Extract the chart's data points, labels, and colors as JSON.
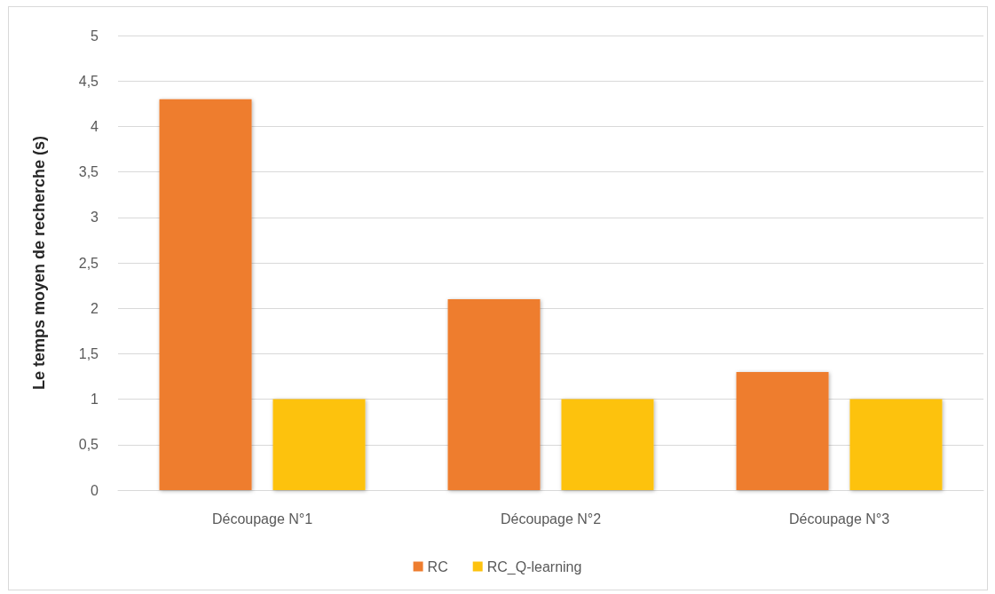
{
  "chart_data": {
    "type": "bar",
    "ylabel": "Le temps moyen de recherche (s)",
    "categories": [
      "Découpage N°1",
      "Découpage N°2",
      "Découpage N°3"
    ],
    "series": [
      {
        "name": "RC",
        "color": "#ee7d2f",
        "values": [
          4.3,
          2.1,
          1.3
        ]
      },
      {
        "name": "RC_Q-learning",
        "color": "#fdc20e",
        "values": [
          1,
          1,
          1
        ]
      }
    ],
    "ylim": [
      0,
      5
    ],
    "yticks": [
      0,
      {
        "value": 0.5,
        "label": "0,5"
      },
      1,
      {
        "value": 1.5,
        "label": "1,5"
      },
      2,
      {
        "value": 2.5,
        "label": "2,5"
      },
      3,
      {
        "value": 3.5,
        "label": "3,5"
      },
      4,
      {
        "value": 4.5,
        "label": "4,5"
      },
      5
    ],
    "grid": "y",
    "legend": "bottom"
  }
}
